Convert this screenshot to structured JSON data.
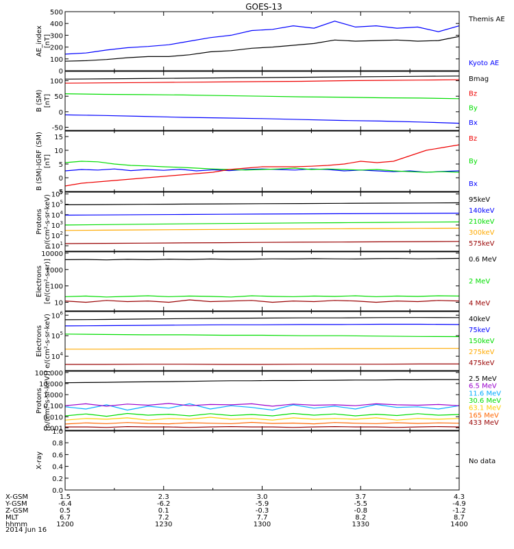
{
  "title": "GOES-13",
  "date": "2014 Jun 16",
  "chart_data": [
    {
      "type": "line",
      "name": "ae",
      "ylabel": [
        "AE_index",
        "[nT]"
      ],
      "ylim": [
        0,
        500
      ],
      "yticks": [
        0,
        100,
        200,
        300,
        400,
        500
      ],
      "series": [
        {
          "name": "Kyoto AE",
          "color": "#0000ff",
          "values": [
            140,
            150,
            175,
            195,
            205,
            220,
            250,
            280,
            300,
            340,
            350,
            380,
            360,
            420,
            370,
            380,
            360,
            370,
            330,
            380
          ]
        },
        {
          "name": "Themis AE",
          "color": "#000000",
          "values": [
            80,
            85,
            95,
            110,
            120,
            120,
            135,
            160,
            170,
            190,
            200,
            215,
            230,
            260,
            250,
            255,
            260,
            250,
            255,
            290
          ]
        }
      ]
    },
    {
      "type": "line",
      "name": "b_sm",
      "ylabel": [
        "B (SM)",
        "[nT]"
      ],
      "ylim": [
        -60,
        130
      ],
      "yticks": [
        -50,
        0,
        50,
        100
      ],
      "series": [
        {
          "name": "Bx",
          "color": "#0000ff",
          "values": [
            -10,
            -12,
            -15,
            -18,
            -20,
            -22,
            -25,
            -28,
            -30,
            -33,
            -37
          ]
        },
        {
          "name": "By",
          "color": "#00dd00",
          "values": [
            58,
            56,
            55,
            54,
            52,
            50,
            48,
            47,
            45,
            44,
            42
          ]
        },
        {
          "name": "Bz",
          "color": "#ee0000",
          "values": [
            92,
            93,
            94,
            95,
            96,
            97,
            98,
            100,
            101,
            102,
            103
          ]
        },
        {
          "name": "Bmag",
          "color": "#000000",
          "values": [
            105,
            106,
            107,
            108,
            109,
            110,
            111,
            112,
            113,
            114,
            115
          ]
        }
      ]
    },
    {
      "type": "line",
      "name": "b_minus_igrf",
      "ylabel": [
        "B (SM)-IGRF (SM)",
        "[nT]"
      ],
      "ylim": [
        -5,
        17
      ],
      "yticks": [
        -5,
        0,
        5,
        10,
        15
      ],
      "series": [
        {
          "name": "Bx",
          "color": "#0000ff",
          "values": [
            2.5,
            3,
            2.8,
            3.2,
            2.6,
            3,
            2.7,
            3.1,
            2.5,
            2.9,
            2.6,
            3,
            3.2,
            3,
            2.8,
            3.2,
            3,
            2.5,
            2.8,
            2.5,
            2.2,
            2.5,
            2,
            2.3,
            2.5
          ]
        },
        {
          "name": "By",
          "color": "#00dd00",
          "values": [
            5.5,
            6,
            5.8,
            5,
            4.5,
            4.3,
            4,
            3.8,
            3.5,
            3.2,
            3,
            2.8,
            3,
            3.2,
            3.5,
            3,
            3.2,
            3,
            2.8,
            3,
            2.5,
            2.2,
            2,
            2.2,
            2
          ]
        },
        {
          "name": "Bz",
          "color": "#ee0000",
          "values": [
            -3,
            -2,
            -1.5,
            -1,
            -0.5,
            0,
            0.5,
            1,
            1.5,
            2,
            3,
            3.5,
            4,
            4,
            4,
            4.2,
            4.5,
            5,
            6,
            5.5,
            6,
            8,
            10,
            11,
            12
          ]
        }
      ]
    },
    {
      "type": "line",
      "name": "protons_low",
      "ylabel": [
        "Protons",
        "p/(cm²-s-sr-keV)"
      ],
      "log": true,
      "ylim": [
        3,
        1500000
      ],
      "yticks": [
        10,
        100,
        1000,
        10000,
        100000,
        1000000
      ],
      "series": [
        {
          "name": "575keV",
          "color": "#990000",
          "values": [
            16,
            17,
            18,
            19,
            20,
            21,
            22,
            23,
            24,
            25,
            26
          ]
        },
        {
          "name": "300keV",
          "color": "#ffaa00",
          "values": [
            300,
            320,
            340,
            360,
            380,
            400,
            420,
            440,
            460,
            480,
            500
          ]
        },
        {
          "name": "210keV",
          "color": "#00dd00",
          "values": [
            1000,
            1100,
            1200,
            1300,
            1400,
            1500,
            1600,
            1700,
            1800,
            1900,
            2000
          ]
        },
        {
          "name": "140keV",
          "color": "#0000ff",
          "values": [
            9000,
            9500,
            10000,
            10500,
            11000,
            11500,
            12000,
            12500,
            13000,
            13500,
            14000
          ]
        },
        {
          "name": "95keV",
          "color": "#000000",
          "values": [
            90000,
            95000,
            100000,
            105000,
            110000,
            115000,
            120000,
            125000,
            130000,
            135000,
            140000
          ]
        }
      ]
    },
    {
      "type": "line",
      "name": "electrons_mev",
      "ylabel": [
        "Electrons",
        "[e/(cm²-s-sr)]"
      ],
      "log": true,
      "ylim": [
        3,
        12000
      ],
      "yticks": [
        10,
        100,
        1000,
        10000
      ],
      "series": [
        {
          "name": "4 MeV",
          "color": "#990000",
          "values": [
            12,
            10,
            13,
            11,
            12,
            10,
            14,
            11,
            12,
            13,
            10,
            12,
            11,
            13,
            12,
            10,
            12,
            11,
            13,
            12
          ]
        },
        {
          "name": "2 MeV",
          "color": "#00dd00",
          "values": [
            22,
            24,
            21,
            23,
            25,
            22,
            24,
            23,
            21,
            25,
            23,
            22,
            24,
            23,
            25,
            22,
            24,
            23,
            25,
            24
          ]
        },
        {
          "name": "0.6 MeV",
          "color": "#000000",
          "values": [
            4000,
            4100,
            3900,
            4200,
            4000,
            4300,
            4100,
            4400,
            4200,
            4300,
            4500,
            4400,
            4600,
            4500,
            4400,
            4600,
            4700,
            4500,
            4600,
            4800
          ]
        }
      ]
    },
    {
      "type": "line",
      "name": "electrons_kev",
      "ylabel": [
        "Electrons",
        "e/(cm²-s-sr-keV)"
      ],
      "log": true,
      "ylim": [
        2000,
        1500000
      ],
      "yticks": [
        10000,
        100000,
        1000000
      ],
      "series": [
        {
          "name": "475keV",
          "color": "#990000",
          "values": [
            4000,
            4000,
            4100,
            4100,
            4000,
            4000,
            4100,
            4100,
            4100,
            4200,
            4200
          ]
        },
        {
          "name": "275keV",
          "color": "#ffaa00",
          "values": [
            22000,
            22000,
            22500,
            22500,
            23000,
            23000,
            23000,
            23500,
            23500,
            24000,
            24000
          ]
        },
        {
          "name": "150keV",
          "color": "#00dd00",
          "values": [
            120000,
            115000,
            110000,
            110000,
            105000,
            105000,
            100000,
            100000,
            95000,
            92000,
            90000
          ]
        },
        {
          "name": "75keV",
          "color": "#0000ff",
          "values": [
            300000,
            310000,
            320000,
            330000,
            340000,
            340000,
            350000,
            350000,
            360000,
            360000,
            350000
          ]
        },
        {
          "name": "40keV",
          "color": "#000000",
          "values": [
            600000,
            620000,
            650000,
            680000,
            700000,
            720000,
            740000,
            740000,
            760000,
            770000,
            760000
          ]
        }
      ]
    },
    {
      "type": "line",
      "name": "protons_mev",
      "ylabel": [
        "Protons",
        "[p/(cm²-s-sr-keV)]"
      ],
      "log": true,
      "ylim": [
        0.0006,
        130
      ],
      "yticks": [
        0.001,
        0.01,
        0.1,
        1,
        10,
        100
      ],
      "yticklabels": [
        "0.001",
        "0.010",
        "0.100",
        "1.000",
        "10.000",
        "100.000"
      ],
      "series": [
        {
          "name": "433 MeV",
          "color": "#990000",
          "values": [
            0.0012,
            0.0012,
            0.0011,
            0.0013,
            0.0012,
            0.0012,
            0.0011,
            0.0012,
            0.0013,
            0.0012,
            0.0012,
            0.0011,
            0.0012,
            0.0013,
            0.0012,
            0.0012,
            0.0011,
            0.0012,
            0.0013,
            0.0012
          ]
        },
        {
          "name": "165 MeV",
          "color": "#ff6600",
          "values": [
            0.0022,
            0.0028,
            0.0024,
            0.003,
            0.0025,
            0.0023,
            0.0029,
            0.0026,
            0.0024,
            0.0031,
            0.0025,
            0.0027,
            0.0023,
            0.003,
            0.0026,
            0.0024,
            0.0029,
            0.0025,
            0.0028,
            0.0026
          ]
        },
        {
          "name": "63.1 MeV",
          "color": "#ffcc00",
          "values": [
            0.005,
            0.007,
            0.006,
            0.008,
            0.005,
            0.007,
            0.006,
            0.009,
            0.006,
            0.007,
            0.005,
            0.008,
            0.006,
            0.007,
            0.006,
            0.008,
            0.005,
            0.007,
            0.006,
            0.007
          ]
        },
        {
          "name": "30.6 MeV",
          "color": "#00dd00",
          "values": [
            0.012,
            0.018,
            0.011,
            0.02,
            0.014,
            0.017,
            0.012,
            0.019,
            0.013,
            0.016,
            0.012,
            0.02,
            0.014,
            0.018,
            0.012,
            0.017,
            0.013,
            0.019,
            0.014,
            0.016
          ]
        },
        {
          "name": "11.6 MeV",
          "color": "#00aaff",
          "values": [
            0.08,
            0.05,
            0.12,
            0.04,
            0.09,
            0.06,
            0.15,
            0.05,
            0.1,
            0.07,
            0.04,
            0.12,
            0.06,
            0.09,
            0.05,
            0.13,
            0.07,
            0.08,
            0.05,
            0.1
          ]
        },
        {
          "name": "6.5 MeV",
          "color": "#9900cc",
          "values": [
            0.1,
            0.15,
            0.09,
            0.14,
            0.11,
            0.16,
            0.1,
            0.13,
            0.12,
            0.15,
            0.09,
            0.14,
            0.11,
            0.12,
            0.1,
            0.15,
            0.12,
            0.11,
            0.13,
            0.1
          ]
        },
        {
          "name": "2.5 MeV",
          "color": "#000000",
          "values": [
            12,
            12.5,
            13,
            14,
            14.5,
            15,
            16,
            17,
            18,
            18,
            19,
            19,
            19.5,
            20,
            21,
            21,
            22,
            22,
            23,
            23
          ]
        }
      ]
    },
    {
      "type": "line",
      "name": "xray",
      "ylabel": [
        "X-ray",
        ""
      ],
      "ylim": [
        0,
        1.0
      ],
      "yticks": [
        0,
        0.2,
        0.4,
        0.6,
        0.8,
        1.0
      ],
      "yticklabels": [
        "0.0",
        "0.2",
        "0.4",
        "0.6",
        "0.8",
        "1.0"
      ],
      "series": [],
      "note": "No data"
    }
  ],
  "ephemeris": {
    "labels": [
      "X-GSM",
      "Y-GSM",
      "Z-GSM",
      "MLT",
      "hhmm"
    ],
    "columns": [
      [
        "1.5",
        "-6.4",
        "0.5",
        "6.7",
        "1200"
      ],
      [
        "2.3",
        "-6.2",
        "0.1",
        "7.2",
        "1230"
      ],
      [
        "3.0",
        "-5.9",
        "-0.3",
        "7.7",
        "1300"
      ],
      [
        "3.7",
        "-5.5",
        "-0.8",
        "8.2",
        "1330"
      ],
      [
        "4.3",
        "-4.9",
        "-1.2",
        "8.7",
        "1400"
      ]
    ]
  }
}
